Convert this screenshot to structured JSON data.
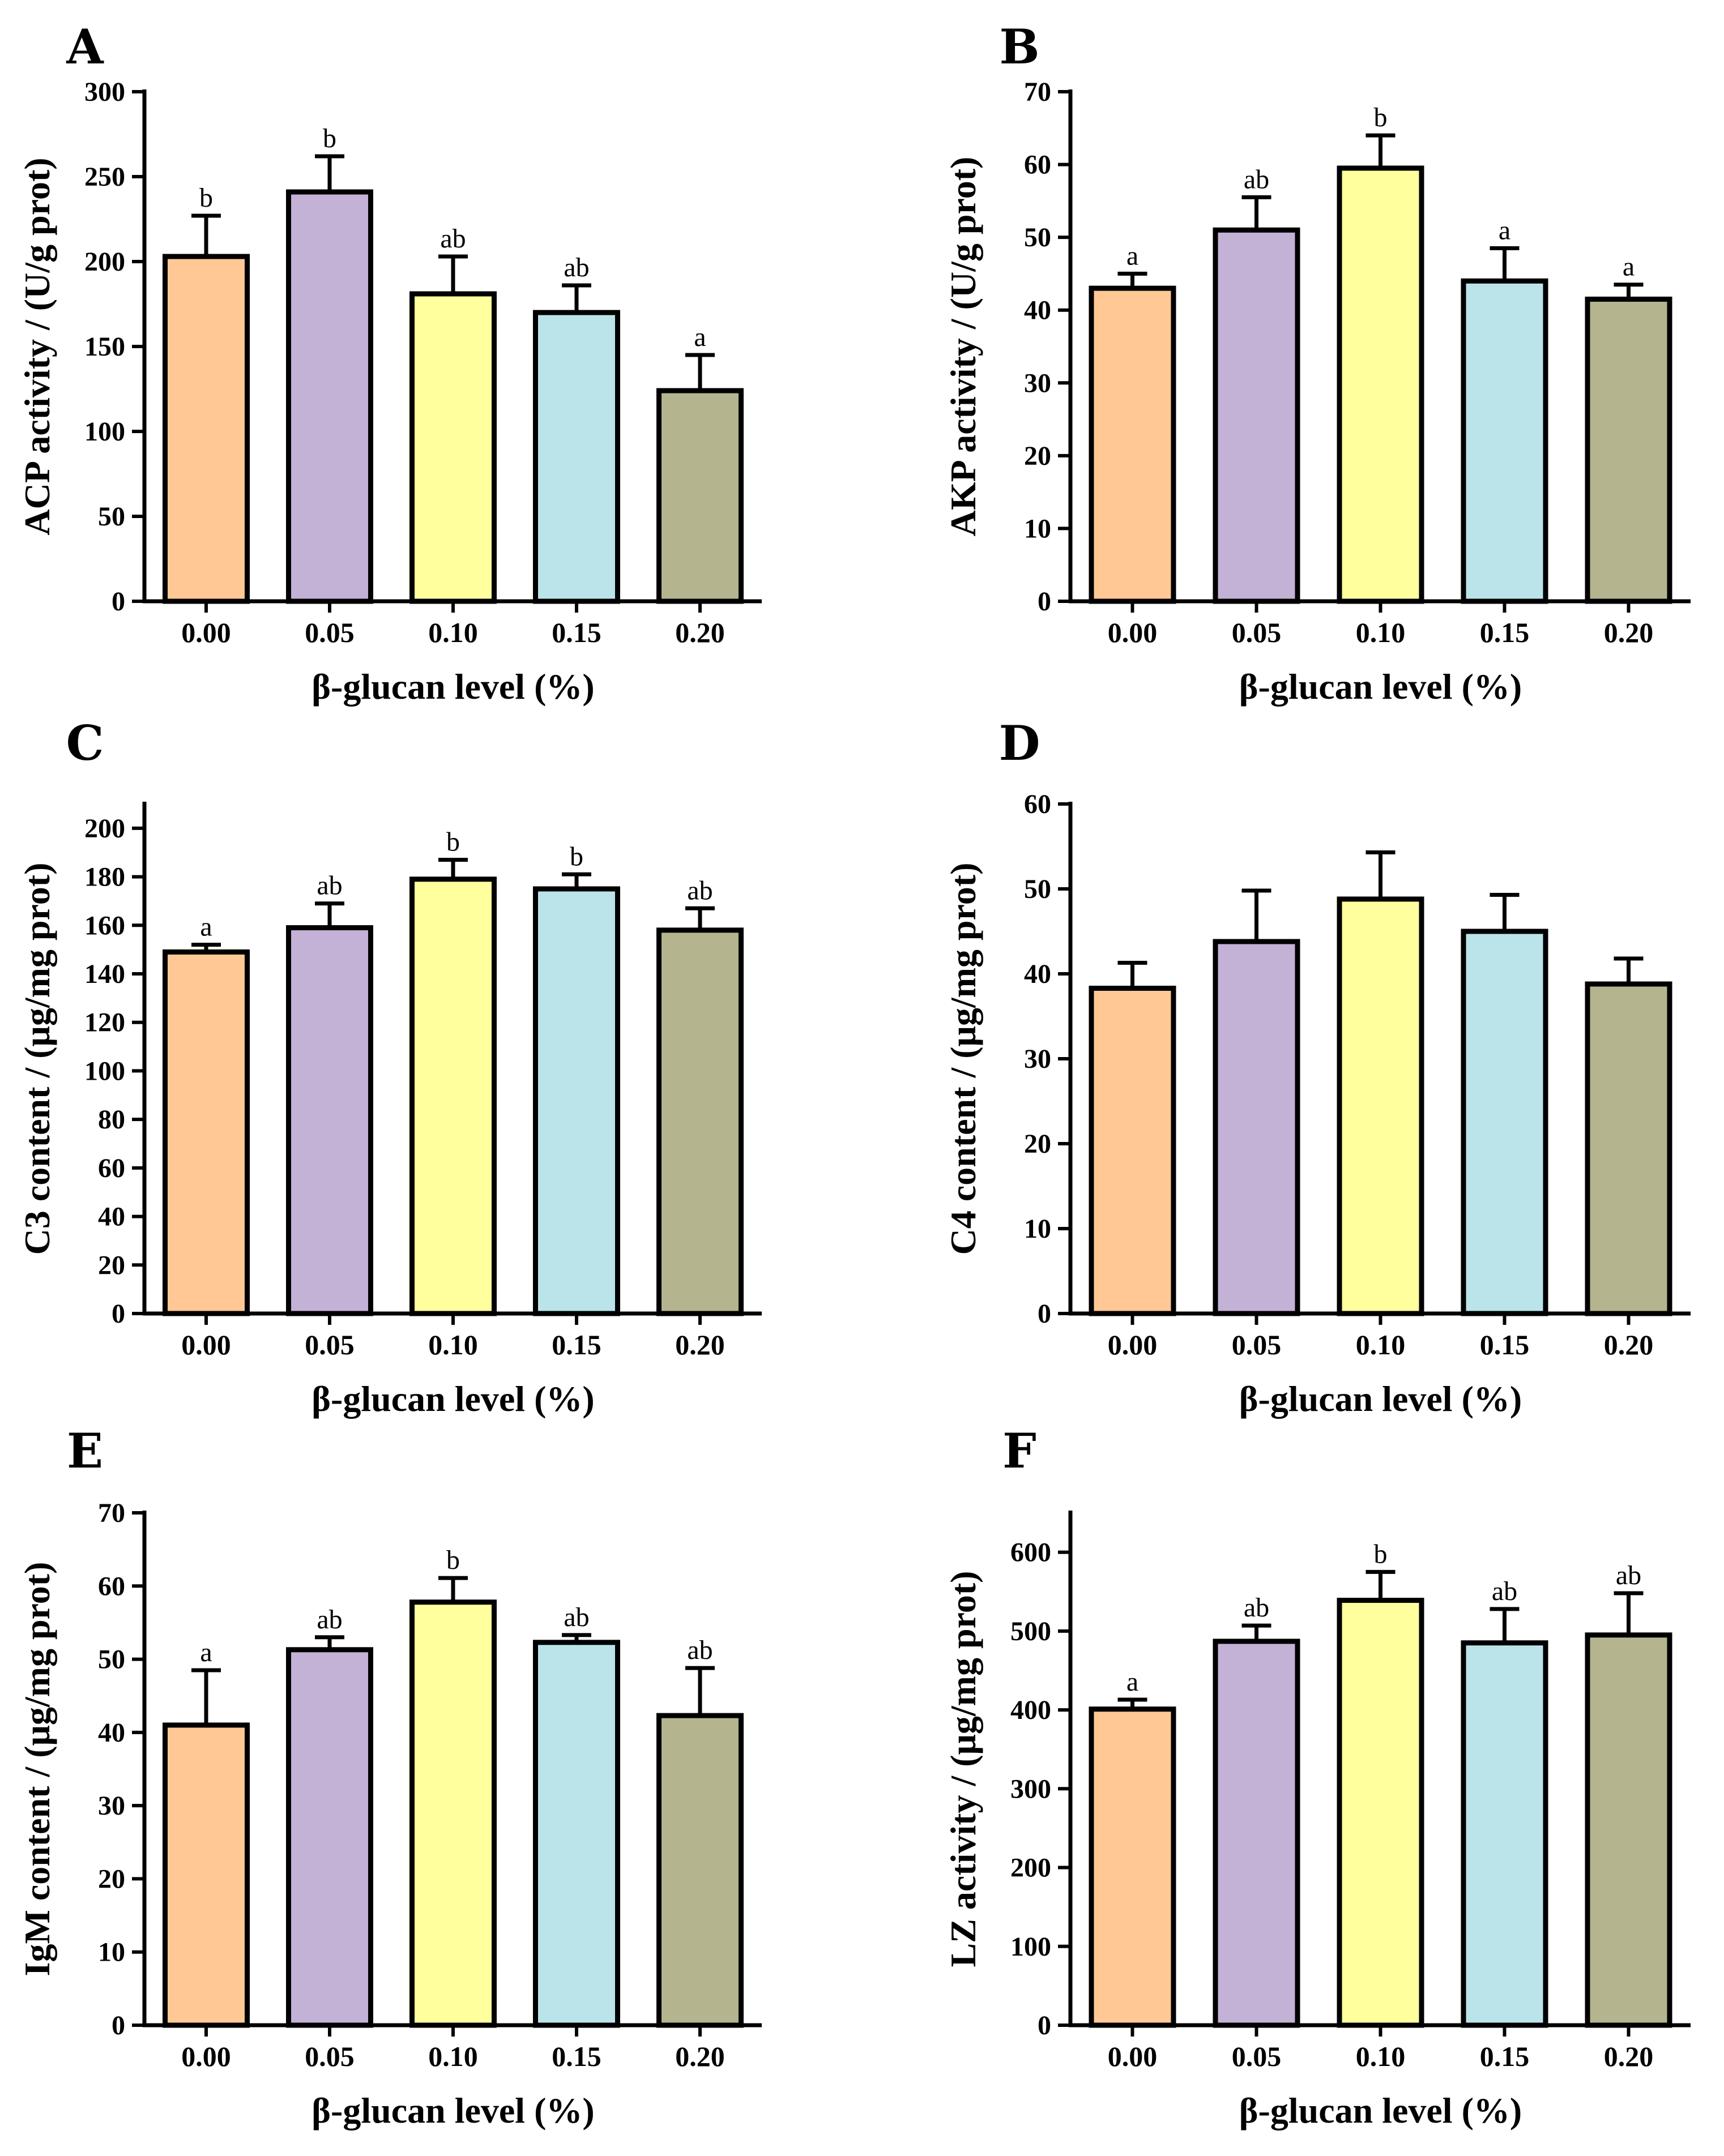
{
  "figure": {
    "categories": [
      "0.00",
      "0.05",
      "0.10",
      "0.15",
      "0.20"
    ],
    "bar_colors": [
      "#FFC895",
      "#C3B1D6",
      "#FFFF9E",
      "#BAE4EA",
      "#B4B48E"
    ]
  },
  "chart_data": [
    {
      "type": "bar",
      "panel": "A",
      "xlabel": "β-glucan level (%)",
      "ylabel": "ACP activity / (U/g prot)",
      "categories": [
        "0.00",
        "0.05",
        "0.10",
        "0.15",
        "0.20"
      ],
      "values": [
        203,
        241,
        181,
        170,
        124
      ],
      "errors": [
        24,
        21,
        22,
        16,
        21
      ],
      "letters": [
        "b",
        "b",
        "ab",
        "ab",
        "a"
      ],
      "ylim": [
        0,
        300
      ],
      "yticks": [
        0,
        50,
        100,
        150,
        200,
        250,
        300
      ]
    },
    {
      "type": "bar",
      "panel": "B",
      "xlabel": "β-glucan level (%)",
      "ylabel": "AKP activity / (U/g prot)",
      "categories": [
        "0.00",
        "0.05",
        "0.10",
        "0.15",
        "0.20"
      ],
      "values": [
        43,
        51,
        59.5,
        44,
        41.5
      ],
      "errors": [
        2,
        4.5,
        4.5,
        4.5,
        2
      ],
      "letters": [
        "a",
        "ab",
        "b",
        "a",
        "a"
      ],
      "ylim": [
        0,
        70
      ],
      "yticks": [
        0,
        10,
        20,
        30,
        40,
        50,
        60,
        70
      ]
    },
    {
      "type": "bar",
      "panel": "C",
      "xlabel": "β-glucan level (%)",
      "ylabel": "C3 content / (μg/mg prot)",
      "categories": [
        "0.00",
        "0.05",
        "0.10",
        "0.15",
        "0.20"
      ],
      "values": [
        149,
        159,
        179,
        175,
        158
      ],
      "errors": [
        3,
        10,
        8,
        6,
        9
      ],
      "letters": [
        "a",
        "ab",
        "b",
        "b",
        "ab"
      ],
      "ylim": [
        0,
        210
      ],
      "yticks": [
        0,
        20,
        40,
        60,
        80,
        100,
        120,
        140,
        160,
        180,
        200
      ]
    },
    {
      "type": "bar",
      "panel": "D",
      "xlabel": "β-glucan level (%)",
      "ylabel": "C4 content / (μg/mg prot)",
      "categories": [
        "0.00",
        "0.05",
        "0.10",
        "0.15",
        "0.20"
      ],
      "values": [
        38.3,
        43.8,
        48.8,
        45,
        38.8
      ],
      "errors": [
        3,
        6,
        5.5,
        4.3,
        3
      ],
      "letters": [
        "",
        "",
        "",
        "",
        ""
      ],
      "ylim": [
        0,
        60
      ],
      "yticks": [
        0,
        10,
        20,
        30,
        40,
        50,
        60
      ]
    },
    {
      "type": "bar",
      "panel": "E",
      "xlabel": "β-glucan level (%)",
      "ylabel": "IgM content / (μg/mg prot)",
      "categories": [
        "0.00",
        "0.05",
        "0.10",
        "0.15",
        "0.20"
      ],
      "values": [
        41,
        51.3,
        57.8,
        52.3,
        42.3
      ],
      "errors": [
        7.5,
        1.7,
        3.3,
        1,
        6.5
      ],
      "letters": [
        "a",
        "ab",
        "b",
        "ab",
        "ab"
      ],
      "ylim": [
        0,
        70
      ],
      "yticks": [
        0,
        10,
        20,
        30,
        40,
        50,
        60,
        70
      ]
    },
    {
      "type": "bar",
      "panel": "F",
      "xlabel": "β-glucan level (%)",
      "ylabel": "LZ activity / (μg/mg prot)",
      "categories": [
        "0.00",
        "0.05",
        "0.10",
        "0.15",
        "0.20"
      ],
      "values": [
        401,
        487,
        539,
        485,
        495
      ],
      "errors": [
        12,
        20,
        36,
        43,
        53
      ],
      "letters": [
        "a",
        "ab",
        "b",
        "ab",
        "ab"
      ],
      "ylim": [
        0,
        650
      ],
      "yticks": [
        0,
        100,
        200,
        300,
        400,
        500,
        600
      ]
    }
  ]
}
